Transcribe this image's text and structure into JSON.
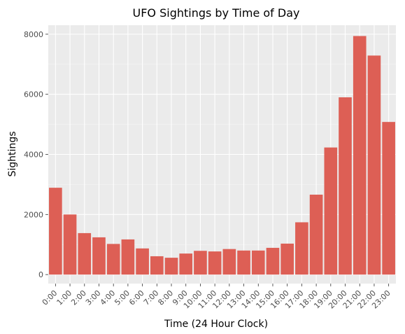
{
  "chart_data": {
    "type": "bar",
    "title": "UFO Sightings by Time of Day",
    "xlabel": "Time (24 Hour Clock)",
    "ylabel": "Sightings",
    "ylim": [
      -300,
      8300
    ],
    "yticks": [
      0,
      2000,
      4000,
      6000,
      8000
    ],
    "grid": true,
    "legend": "none",
    "bar_color": "#dd5f55",
    "panel_color": "#ebebeb",
    "categories": [
      "0:00",
      "1:00",
      "2:00",
      "3:00",
      "4:00",
      "5:00",
      "6:00",
      "7:00",
      "8:00",
      "9:00",
      "10:00",
      "11:00",
      "12:00",
      "13:00",
      "14:00",
      "15:00",
      "16:00",
      "17:00",
      "18:00",
      "19:00",
      "20:00",
      "21:00",
      "22:00",
      "23:00"
    ],
    "values": [
      2890,
      2000,
      1380,
      1240,
      1020,
      1170,
      870,
      610,
      560,
      700,
      790,
      770,
      850,
      800,
      800,
      890,
      1030,
      1740,
      2660,
      4230,
      5900,
      7940,
      7290,
      5080
    ]
  }
}
